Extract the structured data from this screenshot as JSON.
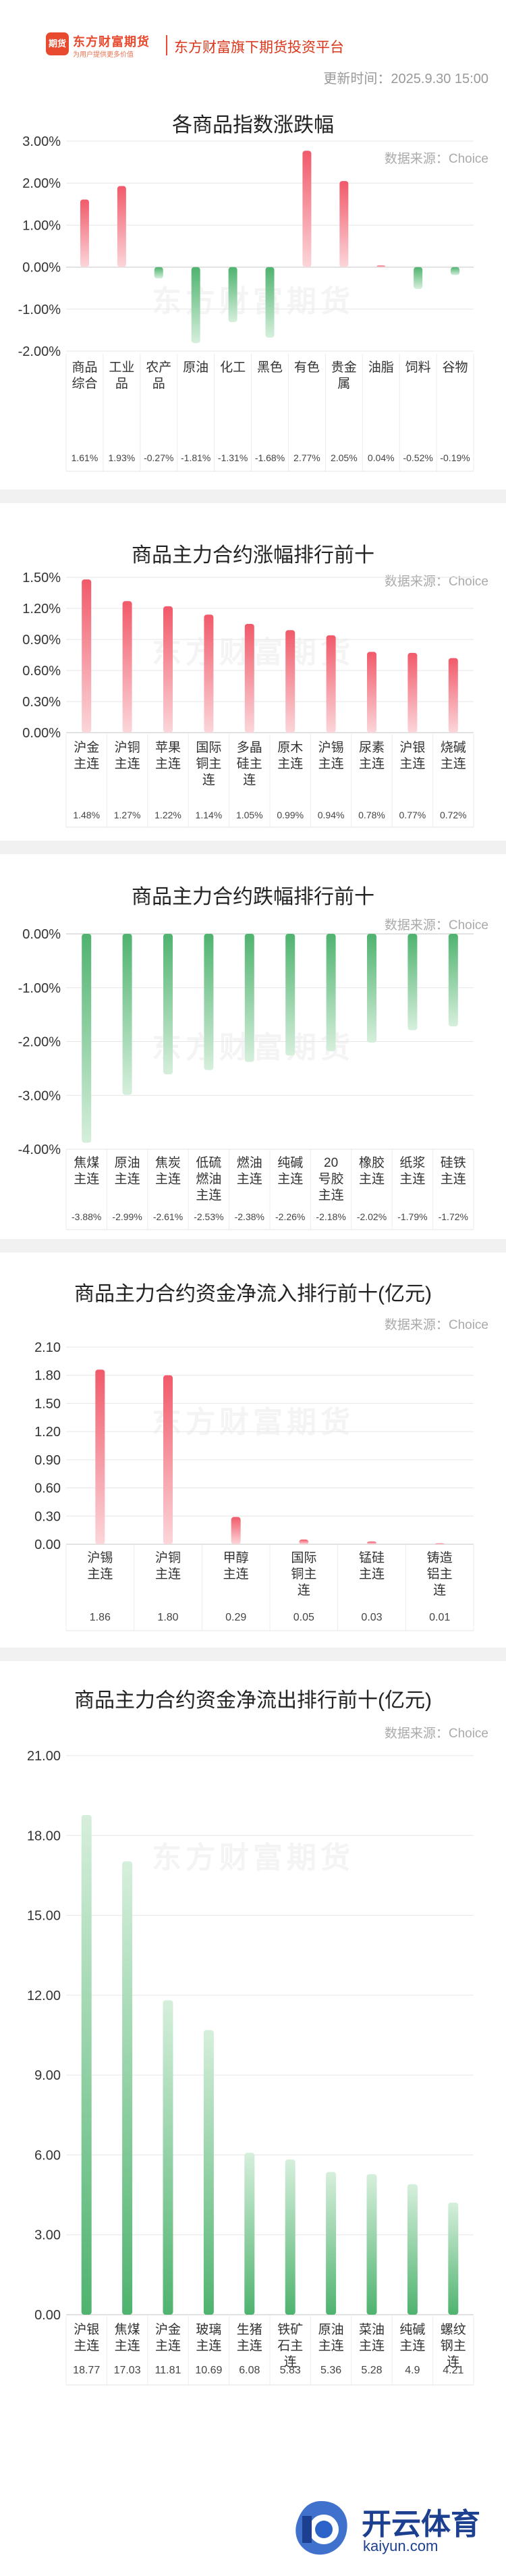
{
  "header": {
    "logo_badge": "期货",
    "logo_name": "东方财富期货",
    "logo_slogan": "为用户提供更多价值",
    "platform": "东方财富旗下期货投资平台",
    "update_time": "更新时间：2025.9.30 15:00"
  },
  "source": "数据来源：Choice",
  "watermark": "东方财富期货",
  "colors": {
    "up_red": "#f15a6a",
    "up_light": "#fbd6da",
    "down_green": "#4fb36f",
    "down_light": "#d6efdc"
  },
  "chart_data": [
    {
      "type": "bar",
      "title": "各商品指数涨跌幅",
      "categories": [
        "商品综合",
        "工业品",
        "农产品",
        "原油",
        "化工",
        "黑色",
        "有色",
        "贵金属",
        "油脂",
        "饲料",
        "谷物"
      ],
      "values": [
        1.61,
        1.93,
        -0.27,
        -1.81,
        -1.31,
        -1.68,
        2.77,
        2.05,
        0.04,
        -0.52,
        -0.19
      ],
      "value_labels": [
        "1.61%",
        "1.93%",
        "-0.27%",
        "-1.81%",
        "-1.31%",
        "-1.68%",
        "2.77%",
        "2.05%",
        "0.04%",
        "-0.52%",
        "-0.19%"
      ],
      "yticks": [
        "3.00%",
        "2.00%",
        "1.00%",
        "0.00%",
        "-1.00%",
        "-2.00%"
      ],
      "ylim": [
        -2,
        3
      ],
      "grid": true
    },
    {
      "type": "bar",
      "title": "商品主力合约涨幅排行前十",
      "categories": [
        "沪金主连",
        "沪铜主连",
        "苹果主连",
        "国际铜主连",
        "多晶硅主连",
        "原木主连",
        "沪锡主连",
        "尿素主连",
        "沪银主连",
        "烧碱主连"
      ],
      "values": [
        1.48,
        1.27,
        1.22,
        1.14,
        1.05,
        0.99,
        0.94,
        0.78,
        0.77,
        0.72
      ],
      "value_labels": [
        "1.48%",
        "1.27%",
        "1.22%",
        "1.14%",
        "1.05%",
        "0.99%",
        "0.94%",
        "0.78%",
        "0.77%",
        "0.72%"
      ],
      "yticks": [
        "1.50%",
        "1.20%",
        "0.90%",
        "0.60%",
        "0.30%",
        "0.00%"
      ],
      "ylim": [
        0,
        1.5
      ],
      "grid": true
    },
    {
      "type": "bar",
      "title": "商品主力合约跌幅排行前十",
      "categories": [
        "焦煤主连",
        "原油主连",
        "焦炭主连",
        "低硫燃油主连",
        "燃油主连",
        "纯碱主连",
        "20号胶主连",
        "橡胶主连",
        "纸浆主连",
        "硅铁主连"
      ],
      "values": [
        -3.88,
        -2.99,
        -2.61,
        -2.53,
        -2.38,
        -2.26,
        -2.18,
        -2.02,
        -1.79,
        -1.72
      ],
      "value_labels": [
        "-3.88%",
        "-2.99%",
        "-2.61%",
        "-2.53%",
        "-2.38%",
        "-2.26%",
        "-2.18%",
        "-2.02%",
        "-1.79%",
        "-1.72%"
      ],
      "yticks": [
        "0.00%",
        "-1.00%",
        "-2.00%",
        "-3.00%",
        "-4.00%"
      ],
      "ylim": [
        -4,
        0
      ],
      "grid": true
    },
    {
      "type": "bar",
      "title": "商品主力合约资金净流入排行前十(亿元)",
      "categories": [
        "沪锡主连",
        "沪铜主连",
        "甲醇主连",
        "国际铜主连",
        "锰硅主连",
        "铸造铝主连"
      ],
      "values": [
        1.86,
        1.8,
        0.29,
        0.05,
        0.03,
        0.01
      ],
      "value_labels": [
        "1.86",
        "1.80",
        "0.29",
        "0.05",
        "0.03",
        "0.01"
      ],
      "yticks": [
        "2.10",
        "1.80",
        "1.50",
        "1.20",
        "0.90",
        "0.60",
        "0.30",
        "0.00"
      ],
      "ylim": [
        0,
        2.1
      ],
      "grid": true
    },
    {
      "type": "bar",
      "title": "商品主力合约资金净流出排行前十(亿元)",
      "categories": [
        "沪银主连",
        "焦煤主连",
        "沪金主连",
        "玻璃主连",
        "生猪主连",
        "铁矿石主连",
        "原油主连",
        "菜油主连",
        "纯碱主连",
        "螺纹钢主连"
      ],
      "values": [
        18.77,
        17.03,
        11.81,
        10.69,
        6.08,
        5.83,
        5.36,
        5.28,
        4.9,
        4.21
      ],
      "value_labels": [
        "18.77",
        "17.03",
        "11.81",
        "10.69",
        "6.08",
        "5.83",
        "5.36",
        "5.28",
        "4.9",
        "4.21"
      ],
      "yticks": [
        "21.00",
        "18.00",
        "15.00",
        "12.00",
        "9.00",
        "6.00",
        "3.00",
        "0.00"
      ],
      "ylim": [
        0,
        21
      ],
      "grid": true
    }
  ],
  "bottom_logo": {
    "name": "开云体育",
    "url": "kaiyun.com"
  }
}
